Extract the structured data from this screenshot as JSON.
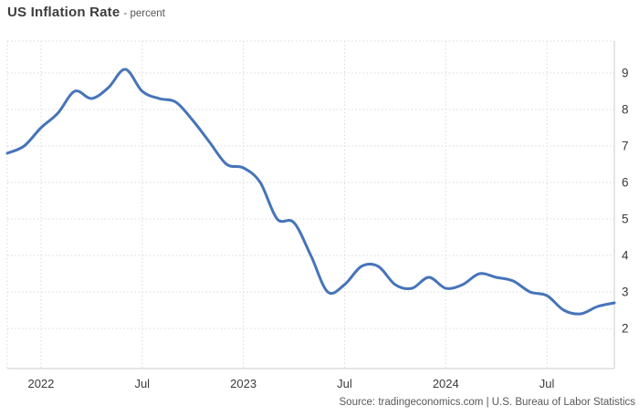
{
  "header": {
    "title": "US Inflation Rate",
    "subtitle": "- percent"
  },
  "footer": {
    "source": "Source: tradingeconomics.com | U.S. Bureau of Labor Statistics"
  },
  "colors": {
    "line": "#4674b9",
    "grid": "#d9d9d9",
    "axis_line": "#cccccc",
    "axis_text": "#3a3a3a"
  },
  "chart_data": {
    "type": "line",
    "title": "US Inflation Rate",
    "ylabel": "percent",
    "xlabel": "",
    "grid": true,
    "legend_position": "none",
    "y_axis_side": "right",
    "ylim": [
      0.9,
      9.9
    ],
    "x": [
      "Nov 2021",
      "Dec 2021",
      "Jan 2022",
      "Feb 2022",
      "Mar 2022",
      "Apr 2022",
      "May 2022",
      "Jun 2022",
      "Jul 2022",
      "Aug 2022",
      "Sep 2022",
      "Oct 2022",
      "Nov 2022",
      "Dec 2022",
      "Jan 2023",
      "Feb 2023",
      "Mar 2023",
      "Apr 2023",
      "May 2023",
      "Jun 2023",
      "Jul 2023",
      "Aug 2023",
      "Sep 2023",
      "Oct 2023",
      "Nov 2023",
      "Dec 2023",
      "Jan 2024",
      "Feb 2024",
      "Mar 2024",
      "Apr 2024",
      "May 2024",
      "Jun 2024",
      "Jul 2024",
      "Aug 2024",
      "Sep 2024",
      "Oct 2024",
      "Nov 2024"
    ],
    "values": [
      6.8,
      7.0,
      7.5,
      7.9,
      8.5,
      8.3,
      8.6,
      9.1,
      8.5,
      8.3,
      8.2,
      7.7,
      7.1,
      6.5,
      6.4,
      6.0,
      5.0,
      4.9,
      4.0,
      3.0,
      3.2,
      3.7,
      3.7,
      3.2,
      3.1,
      3.4,
      3.1,
      3.2,
      3.5,
      3.4,
      3.3,
      3.0,
      2.9,
      2.5,
      2.4,
      2.6,
      2.7
    ],
    "x_ticks": [
      {
        "label": "2022",
        "index": 2
      },
      {
        "label": "Jul",
        "index": 8
      },
      {
        "label": "2023",
        "index": 14
      },
      {
        "label": "Jul",
        "index": 20
      },
      {
        "label": "2024",
        "index": 26
      },
      {
        "label": "Jul",
        "index": 32
      }
    ],
    "y_ticks": [
      2,
      3,
      4,
      5,
      6,
      7,
      8,
      9
    ]
  }
}
